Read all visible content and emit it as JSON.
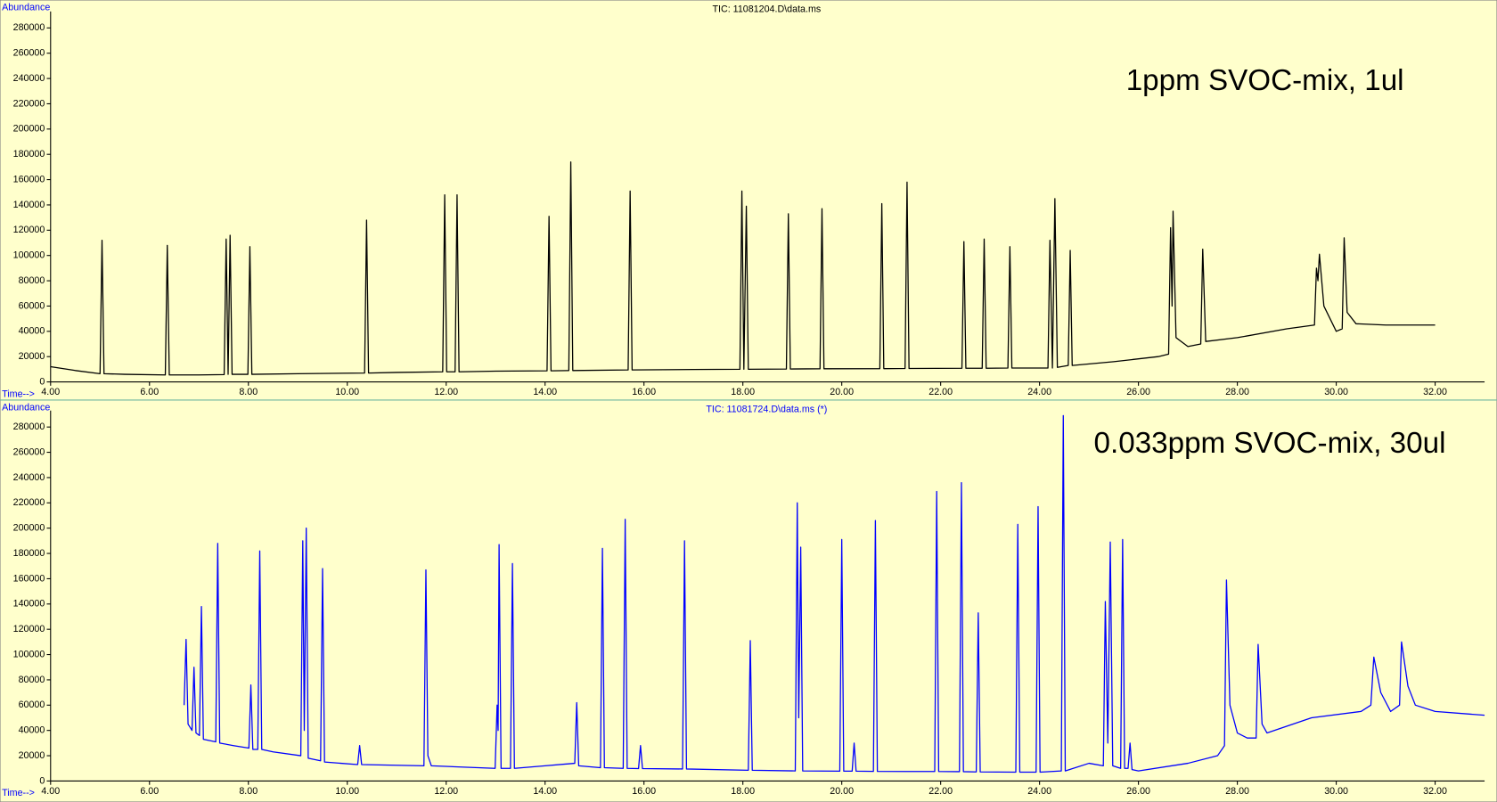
{
  "chart_data": [
    {
      "type": "line",
      "title": "TIC: 11081204.D\\data.ms",
      "y_label": "Abundance",
      "x_label": "Time-->",
      "annotation": "1ppm SVOC-mix, 1ul",
      "color": "#000000",
      "xlim": [
        4,
        33
      ],
      "ylim": [
        0,
        290000
      ],
      "xticks": [
        {
          "value": 4,
          "label": "4.00"
        },
        {
          "value": 6,
          "label": "6.00"
        },
        {
          "value": 8,
          "label": "8.00"
        },
        {
          "value": 10,
          "label": "10.00"
        },
        {
          "value": 12,
          "label": "12.00"
        },
        {
          "value": 14,
          "label": "14.00"
        },
        {
          "value": 16,
          "label": "16.00"
        },
        {
          "value": 18,
          "label": "18.00"
        },
        {
          "value": 20,
          "label": "20.00"
        },
        {
          "value": 22,
          "label": "22.00"
        },
        {
          "value": 24,
          "label": "24.00"
        },
        {
          "value": 26,
          "label": "26.00"
        },
        {
          "value": 28,
          "label": "28.00"
        },
        {
          "value": 30,
          "label": "30.00"
        },
        {
          "value": 32,
          "label": "32.00"
        }
      ],
      "yticks": [
        0,
        20000,
        40000,
        60000,
        80000,
        100000,
        120000,
        140000,
        160000,
        180000,
        200000,
        220000,
        240000,
        260000,
        280000
      ],
      "x": [
        4.0,
        4.5,
        5.0,
        5.04,
        5.08,
        5.5,
        6.32,
        6.36,
        6.4,
        7.0,
        7.51,
        7.55,
        7.59,
        7.63,
        7.67,
        7.99,
        8.03,
        8.07,
        9.0,
        10.35,
        10.39,
        10.43,
        11.0,
        11.93,
        11.97,
        12.01,
        12.18,
        12.22,
        12.26,
        13.0,
        14.04,
        14.08,
        14.12,
        14.48,
        14.52,
        14.56,
        15.68,
        15.72,
        15.76,
        17.0,
        17.94,
        17.98,
        18.02,
        18.07,
        18.11,
        18.88,
        18.92,
        18.96,
        19.56,
        19.6,
        19.64,
        20.77,
        20.81,
        20.85,
        21.28,
        21.32,
        21.36,
        22.43,
        22.47,
        22.51,
        22.84,
        22.88,
        22.92,
        23.36,
        23.4,
        23.44,
        24.17,
        24.21,
        24.26,
        24.31,
        24.36,
        24.58,
        24.62,
        24.66,
        25.5,
        26.4,
        26.61,
        26.65,
        26.68,
        26.7,
        26.76,
        27.0,
        27.26,
        27.3,
        27.36,
        28.0,
        29.0,
        29.56,
        29.6,
        29.63,
        29.66,
        29.75,
        30.0,
        30.12,
        30.16,
        30.22,
        30.4,
        31.0,
        32.0
      ],
      "values": [
        12000,
        9000,
        6500,
        112000,
        6500,
        6000,
        5500,
        108000,
        5500,
        5500,
        5800,
        113000,
        6000,
        116000,
        6000,
        6000,
        107000,
        6000,
        6500,
        7000,
        128000,
        7000,
        7500,
        8000,
        148000,
        8000,
        8000,
        148000,
        8000,
        8500,
        8800,
        131000,
        8800,
        9000,
        174000,
        9000,
        9500,
        151000,
        9500,
        9800,
        10000,
        151000,
        10000,
        139000,
        10000,
        10200,
        133000,
        10200,
        10400,
        137000,
        10400,
        10500,
        141000,
        10500,
        10600,
        158000,
        10600,
        10800,
        111000,
        10800,
        10800,
        113000,
        10800,
        11000,
        107000,
        11000,
        11000,
        112000,
        11000,
        145000,
        11500,
        13000,
        104000,
        13000,
        16000,
        20000,
        22000,
        122000,
        60000,
        135000,
        35000,
        28000,
        30000,
        105000,
        32000,
        35000,
        42000,
        45000,
        90000,
        80000,
        101000,
        60000,
        40000,
        42000,
        114000,
        55000,
        46000,
        45000,
        45000
      ]
    },
    {
      "type": "line",
      "title": "TIC: 11081724.D\\data.ms (*)",
      "y_label": "Abundance",
      "x_label": "Time-->",
      "annotation": "0.033ppm SVOC-mix, 30ul",
      "color": "#0000ff",
      "xlim": [
        4,
        33
      ],
      "ylim": [
        0,
        290000
      ],
      "xticks": [
        {
          "value": 4,
          "label": "4.00"
        },
        {
          "value": 6,
          "label": "6.00"
        },
        {
          "value": 8,
          "label": "8.00"
        },
        {
          "value": 10,
          "label": "10.00"
        },
        {
          "value": 12,
          "label": "12.00"
        },
        {
          "value": 14,
          "label": "14.00"
        },
        {
          "value": 16,
          "label": "16.00"
        },
        {
          "value": 18,
          "label": "18.00"
        },
        {
          "value": 20,
          "label": "20.00"
        },
        {
          "value": 22,
          "label": "22.00"
        },
        {
          "value": 24,
          "label": "24.00"
        },
        {
          "value": 26,
          "label": "26.00"
        },
        {
          "value": 28,
          "label": "28.00"
        },
        {
          "value": 30,
          "label": "30.00"
        },
        {
          "value": 32,
          "label": "32.00"
        }
      ],
      "yticks": [
        0,
        20000,
        40000,
        60000,
        80000,
        100000,
        120000,
        140000,
        160000,
        180000,
        200000,
        220000,
        240000,
        260000,
        280000
      ],
      "x": [
        6.7,
        6.74,
        6.78,
        6.86,
        6.9,
        6.94,
        7.01,
        7.05,
        7.09,
        7.34,
        7.38,
        7.42,
        7.7,
        8.01,
        8.05,
        8.09,
        8.19,
        8.23,
        8.27,
        8.5,
        9.06,
        9.1,
        9.13,
        9.17,
        9.21,
        9.46,
        9.5,
        9.54,
        10.21,
        10.25,
        10.29,
        11.55,
        11.59,
        11.63,
        11.7,
        12.99,
        13.03,
        13.05,
        13.07,
        13.11,
        13.3,
        13.34,
        13.38,
        14.0,
        14.6,
        14.64,
        14.68,
        15.12,
        15.16,
        15.2,
        15.58,
        15.62,
        15.66,
        15.89,
        15.93,
        15.97,
        16.78,
        16.82,
        16.86,
        18.11,
        18.15,
        18.19,
        19.06,
        19.1,
        19.13,
        19.17,
        19.21,
        19.96,
        20.0,
        20.04,
        20.21,
        20.25,
        20.29,
        20.64,
        20.68,
        20.72,
        21.88,
        21.92,
        21.96,
        22.38,
        22.42,
        22.46,
        22.72,
        22.76,
        22.8,
        23.52,
        23.56,
        23.6,
        23.93,
        23.97,
        24.01,
        24.44,
        24.48,
        24.52,
        25.0,
        25.29,
        25.33,
        25.38,
        25.43,
        25.48,
        25.64,
        25.68,
        25.72,
        25.79,
        25.83,
        25.87,
        26.0,
        27.0,
        27.6,
        27.74,
        27.78,
        27.85,
        28.0,
        28.2,
        28.38,
        28.42,
        28.5,
        28.6,
        29.5,
        30.5,
        30.7,
        30.76,
        30.9,
        31.1,
        31.28,
        31.32,
        31.45,
        31.6,
        32.0,
        33.0
      ],
      "values": [
        60000,
        112000,
        45000,
        40000,
        90000,
        38000,
        36000,
        138000,
        33000,
        31000,
        188000,
        30000,
        28000,
        26000,
        76000,
        25000,
        25000,
        182000,
        25000,
        23000,
        20000,
        190000,
        40000,
        200000,
        18000,
        16000,
        168000,
        15000,
        13000,
        28000,
        13000,
        12000,
        167000,
        20000,
        12000,
        10000,
        60000,
        40000,
        187000,
        10000,
        10000,
        172000,
        10000,
        12000,
        14000,
        62000,
        12000,
        10500,
        184000,
        10500,
        10000,
        207000,
        10000,
        9800,
        28000,
        9800,
        9500,
        190000,
        9500,
        8500,
        111000,
        8500,
        8000,
        220000,
        50000,
        185000,
        8000,
        7800,
        191000,
        7800,
        7800,
        30000,
        7800,
        7600,
        206000,
        7600,
        7500,
        229000,
        7500,
        7400,
        236000,
        7400,
        7200,
        133000,
        7200,
        7000,
        203000,
        7000,
        7000,
        217000,
        7000,
        8000,
        289000,
        8000,
        14000,
        12000,
        142000,
        30000,
        189000,
        12000,
        10000,
        191000,
        10000,
        10000,
        30000,
        9000,
        8000,
        14000,
        20000,
        28000,
        159000,
        60000,
        38000,
        34000,
        34000,
        108000,
        45000,
        38000,
        50000,
        55000,
        60000,
        98000,
        70000,
        55000,
        60000,
        110000,
        75000,
        60000,
        55000,
        52000
      ]
    }
  ]
}
